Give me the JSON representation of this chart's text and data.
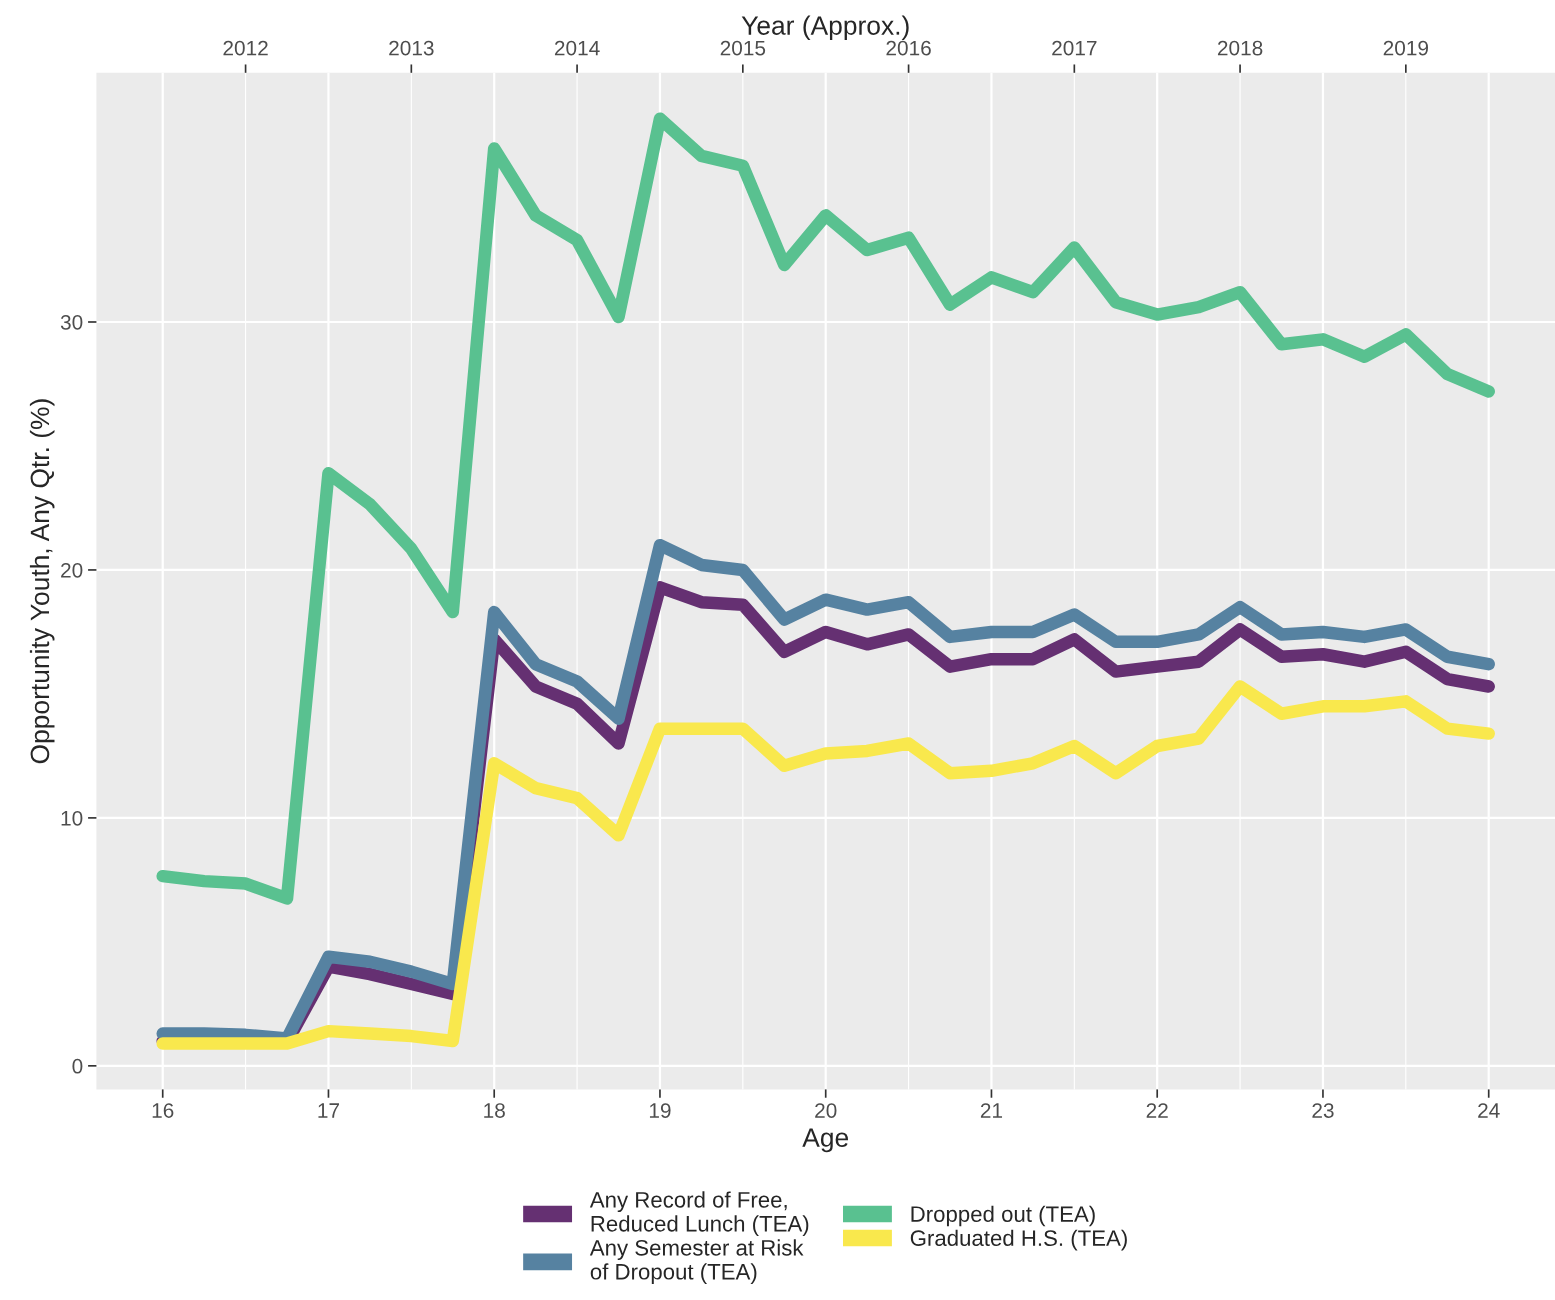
{
  "chart_data": {
    "type": "line",
    "xlabel": "Age",
    "ylabel": "Opportunity Youth, Any Qtr. (%)",
    "x2label": "Year (Approx.)",
    "x": [
      16,
      16.25,
      16.5,
      16.75,
      17,
      17.25,
      17.5,
      17.75,
      18,
      18.25,
      18.5,
      18.75,
      19,
      19.25,
      19.5,
      19.75,
      20,
      20.25,
      20.5,
      20.75,
      21,
      21.25,
      21.5,
      21.75,
      22,
      22.25,
      22.5,
      22.75,
      23,
      23.25,
      23.5,
      23.75,
      24
    ],
    "series": [
      {
        "name": "Any Record of Free,\nReduced Lunch (TEA)",
        "color": "#653072",
        "values": [
          1.0,
          1.0,
          1.0,
          0.95,
          4.0,
          3.7,
          3.3,
          2.9,
          17.2,
          15.3,
          14.6,
          13.0,
          19.3,
          18.7,
          18.6,
          16.7,
          17.5,
          17.0,
          17.4,
          16.1,
          16.4,
          16.4,
          17.2,
          15.9,
          16.1,
          16.3,
          17.6,
          16.5,
          16.6,
          16.3,
          16.7,
          15.6,
          15.3
        ]
      },
      {
        "name": "Any Semester at Risk\nof Dropout (TEA)",
        "color": "#5682a1",
        "values": [
          1.3,
          1.3,
          1.25,
          1.1,
          4.4,
          4.2,
          3.8,
          3.3,
          18.3,
          16.2,
          15.5,
          14.0,
          21.0,
          20.2,
          20.0,
          18.0,
          18.8,
          18.4,
          18.7,
          17.3,
          17.5,
          17.5,
          18.2,
          17.1,
          17.1,
          17.4,
          18.5,
          17.4,
          17.5,
          17.3,
          17.6,
          16.5,
          16.2
        ]
      },
      {
        "name": "Dropped out (TEA)",
        "color": "#59c190",
        "values": [
          7.65,
          7.45,
          7.35,
          6.75,
          23.9,
          22.65,
          20.85,
          18.3,
          37.0,
          34.3,
          33.3,
          30.2,
          38.2,
          36.7,
          36.3,
          32.3,
          34.3,
          32.9,
          33.4,
          30.7,
          31.8,
          31.2,
          33.0,
          30.8,
          30.3,
          30.6,
          31.2,
          29.1,
          29.3,
          28.6,
          29.5,
          27.9,
          27.2
        ]
      },
      {
        "name": "Graduated H.S. (TEA)",
        "color": "#f9e84d",
        "values": [
          0.9,
          0.9,
          0.9,
          0.9,
          1.4,
          1.3,
          1.2,
          1.0,
          12.2,
          11.2,
          10.8,
          9.3,
          13.6,
          13.6,
          13.6,
          12.1,
          12.6,
          12.7,
          13.0,
          11.8,
          11.9,
          12.2,
          12.9,
          11.8,
          12.9,
          13.2,
          15.3,
          14.2,
          14.5,
          14.5,
          14.7,
          13.6,
          13.4
        ]
      }
    ],
    "xlim": [
      15.6,
      24.4
    ],
    "ylim": [
      -0.95,
      40.05
    ],
    "xticks": [
      16,
      17,
      18,
      19,
      20,
      21,
      22,
      23,
      24
    ],
    "yticks": [
      0,
      10,
      20,
      30
    ],
    "x2lim": [
      2011.1,
      2019.9
    ],
    "x2ticks": [
      2012,
      2013,
      2014,
      2015,
      2016,
      2017,
      2018,
      2019
    ],
    "grid": true,
    "legend": "bottom",
    "line_style": "solid",
    "marker": "none"
  }
}
